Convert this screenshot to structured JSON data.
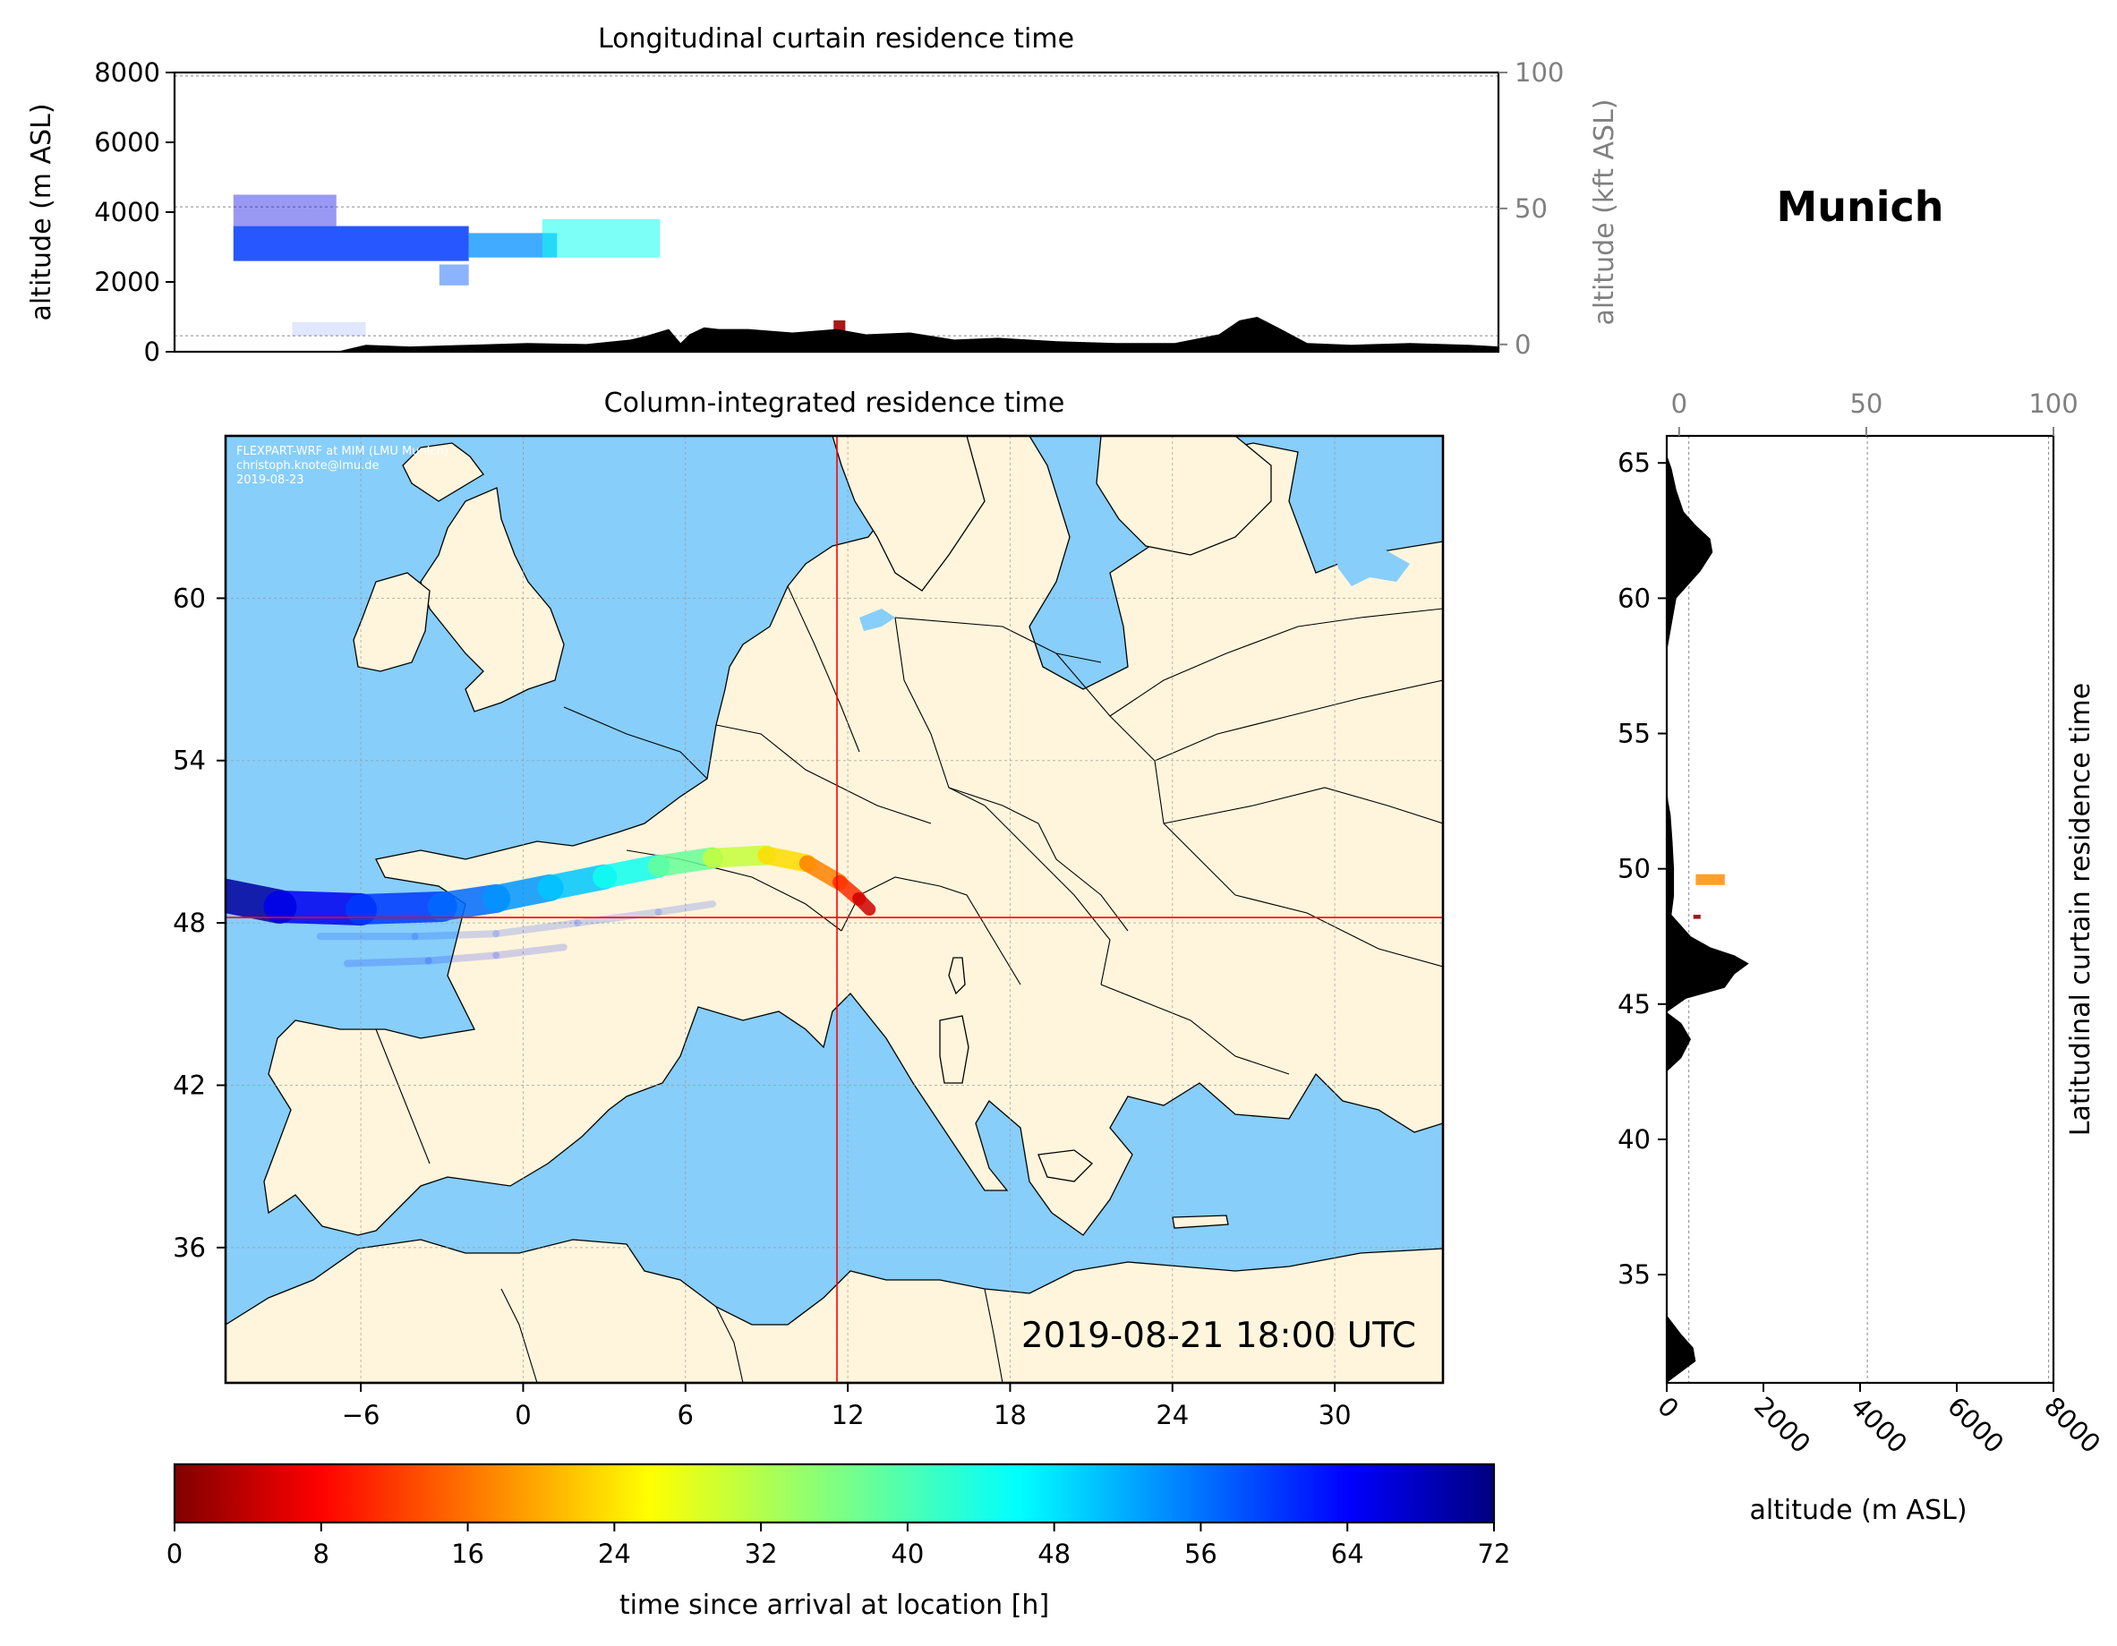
{
  "location": "Munich",
  "colors": {
    "sea": "#87cefa",
    "land": "#fff5dc",
    "terrain": "#000000",
    "crosshair": "#ff0000",
    "secondary_axis": "#808080"
  },
  "chart_data": [
    {
      "id": "longitudinal",
      "type": "area",
      "title": "Longitudinal curtain residence time",
      "xlabel": "",
      "ylabel": "altitude (m ASL)",
      "ylabel_right": "altitude (kft ASL)",
      "xlim": [
        -11,
        34
      ],
      "ylim": [
        0,
        8000
      ],
      "yticks": [
        0,
        2000,
        4000,
        6000,
        8000
      ],
      "ylim_right": [
        -2.7,
        100
      ],
      "yticks_right": [
        0,
        50,
        100
      ],
      "grid_lines_m": [
        457,
        4150,
        7900
      ],
      "terrain": {
        "lon": [
          -11,
          -5.5,
          -4.5,
          -3,
          -1,
          1,
          3,
          4.5,
          5,
          5.8,
          6.2,
          6.5,
          7,
          7.5,
          8.5,
          10,
          11.5,
          12.5,
          14,
          15.5,
          17,
          19,
          21,
          23,
          24.5,
          25.2,
          25.8,
          26.5,
          27.5,
          29,
          31,
          33,
          34
        ],
        "alt": [
          0,
          0,
          200,
          150,
          200,
          250,
          220,
          350,
          450,
          650,
          250,
          500,
          700,
          650,
          650,
          550,
          650,
          500,
          550,
          350,
          400,
          300,
          250,
          250,
          500,
          900,
          1000,
          700,
          250,
          200,
          250,
          200,
          150
        ]
      },
      "plumes": [
        {
          "lon0": -9,
          "lon1": -5.5,
          "alt0": 3600,
          "alt1": 4500,
          "hours": 66,
          "opacity": 0.4
        },
        {
          "lon0": -9,
          "lon1": -1,
          "alt0": 2600,
          "alt1": 3600,
          "hours": 60,
          "opacity": 0.85
        },
        {
          "lon0": -1,
          "lon1": 2,
          "alt0": 2700,
          "alt1": 3400,
          "hours": 54,
          "opacity": 0.75
        },
        {
          "lon0": 1.5,
          "lon1": 5.5,
          "alt0": 2700,
          "alt1": 3800,
          "hours": 45,
          "opacity": 0.55
        },
        {
          "lon0": -2,
          "lon1": -1,
          "alt0": 1900,
          "alt1": 2500,
          "hours": 58,
          "opacity": 0.45
        },
        {
          "lon0": -7,
          "lon1": -4.5,
          "alt0": 450,
          "alt1": 850,
          "hours": 60,
          "opacity": 0.12
        },
        {
          "lon0": 11.4,
          "lon1": 11.8,
          "alt0": 600,
          "alt1": 900,
          "hours": 2,
          "opacity": 0.9
        }
      ]
    },
    {
      "id": "column",
      "type": "heatmap",
      "title": "Column-integrated residence time",
      "xlim": [
        -11,
        34
      ],
      "ylim": [
        31,
        66
      ],
      "xticks": [
        -6,
        0,
        6,
        12,
        18,
        24,
        30
      ],
      "yticks": [
        36,
        42,
        48,
        54,
        60
      ],
      "site": {
        "lon": 11.6,
        "lat": 48.2
      },
      "timestamp": "2019-08-21 18:00 UTC",
      "credit": [
        "FLEXPART-WRF at MIM (LMU Munich)",
        "christoph.knote@lmu.de",
        "2019-08-23"
      ],
      "plume_track": {
        "lon": [
          -11,
          -9,
          -6,
          -3,
          -1,
          1,
          3,
          5,
          7,
          9,
          10.5,
          11.7,
          12.4,
          12.8
        ],
        "lat": [
          49.0,
          48.6,
          48.5,
          48.6,
          48.9,
          49.3,
          49.7,
          50.1,
          50.4,
          50.5,
          50.2,
          49.5,
          48.9,
          48.5
        ],
        "hours": [
          72,
          68,
          62,
          58,
          55,
          52,
          48,
          42,
          34,
          27,
          20,
          14,
          8,
          2
        ]
      },
      "faint_tracks": [
        {
          "lon": [
            -7.5,
            -4,
            -1,
            2,
            5,
            7
          ],
          "lat": [
            47.5,
            47.5,
            47.6,
            48.0,
            48.4,
            48.7
          ],
          "hours": 60
        },
        {
          "lon": [
            -6.5,
            -3.5,
            -1,
            1.5
          ],
          "lat": [
            46.5,
            46.6,
            46.8,
            47.1
          ],
          "hours": 62
        }
      ]
    },
    {
      "id": "latitudinal",
      "type": "area",
      "title": "Latitudinal curtain residence time",
      "xlabel": "altitude (m ASL)",
      "xlim": [
        0,
        8000
      ],
      "xticks": [
        0,
        2000,
        4000,
        6000,
        8000
      ],
      "xlim_top": [
        -3.3,
        100
      ],
      "xticks_top": [
        0,
        50,
        100
      ],
      "ylim": [
        31,
        66
      ],
      "yticks": [
        35,
        40,
        45,
        50,
        55,
        60,
        65
      ],
      "grid_lines_m": [
        457,
        4150,
        7900
      ],
      "terrain": {
        "lat": [
          31,
          31.4,
          31.8,
          32.3,
          32.8,
          33.5,
          36,
          40,
          42.5,
          43,
          43.7,
          44.3,
          44.7,
          45.2,
          45.6,
          46.1,
          46.5,
          46.8,
          47.1,
          47.5,
          47.9,
          48.3,
          49,
          50,
          51,
          52,
          52.5,
          53,
          55,
          58,
          59,
          60,
          61,
          61.7,
          62.2,
          62.7,
          63.2,
          64,
          64.8,
          65.3,
          66
        ],
        "alt": [
          0,
          300,
          600,
          550,
          300,
          0,
          0,
          0,
          0,
          300,
          500,
          300,
          0,
          400,
          1200,
          1400,
          1700,
          1400,
          900,
          500,
          300,
          100,
          150,
          150,
          120,
          80,
          30,
          0,
          0,
          0,
          100,
          200,
          700,
          950,
          900,
          600,
          350,
          200,
          100,
          0,
          0
        ]
      },
      "plumes": [
        {
          "lat0": 49.4,
          "lat1": 49.8,
          "alt0": 600,
          "alt1": 1200,
          "hours": 18,
          "opacity": 0.85
        },
        {
          "lat0": 48.15,
          "lat1": 48.3,
          "alt0": 550,
          "alt1": 700,
          "hours": 1,
          "opacity": 0.9
        }
      ]
    },
    {
      "id": "colorbar",
      "type": "colorbar",
      "label": "time since arrival at location [h]",
      "range": [
        0,
        72
      ],
      "ticks": [
        0,
        8,
        16,
        24,
        32,
        40,
        48,
        56,
        64,
        72
      ],
      "colormap": "jet_r"
    }
  ]
}
